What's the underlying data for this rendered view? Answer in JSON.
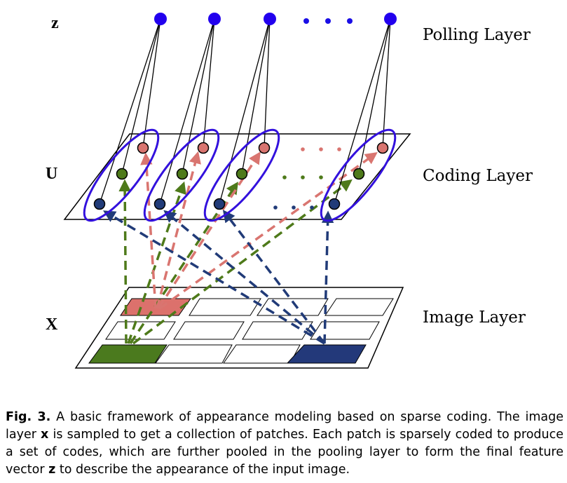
{
  "labels": {
    "z": "z",
    "u": "U",
    "x": "X",
    "pooling_layer": "Polling Layer",
    "coding_layer": "Coding Layer",
    "image_layer": "Image Layer"
  },
  "colors": {
    "pool_node": "#2200ee",
    "group_ellipse": "#3311dd",
    "red_code": "#d97570",
    "green_code": "#4e7a1a",
    "blue_code": "#213b78",
    "red_patch": "#dc716c",
    "green_patch": "#4b7a1e",
    "blue_patch": "#23397a",
    "dots": "#1a0ee6"
  },
  "caption": {
    "fig_id": "Fig. 3.",
    "part1": " A basic framework of appearance modeling based on sparse coding. The image layer ",
    "var_x": "x",
    "part2": " is sampled to get a collection of patches. Each patch is sparsely coded to produce a set of codes, which are further pooled in the pooling layer to form the final feature vector ",
    "var_z": "z",
    "part3": " to describe the appearance of the input image."
  }
}
